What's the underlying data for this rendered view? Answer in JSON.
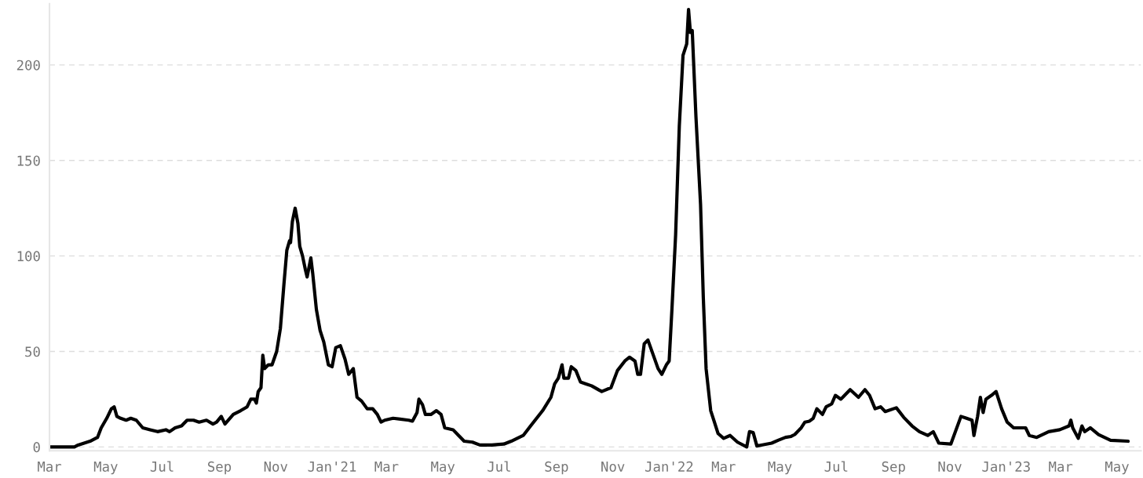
{
  "chart_data": {
    "type": "line",
    "x": [
      "2020-03-01",
      "2020-03-28",
      "2020-04-01",
      "2020-04-14",
      "2020-04-22",
      "2020-04-26",
      "2020-05-02",
      "2020-05-07",
      "2020-05-10",
      "2020-05-13",
      "2020-05-17",
      "2020-05-23",
      "2020-05-28",
      "2020-06-03",
      "2020-06-10",
      "2020-06-18",
      "2020-06-26",
      "2020-07-05",
      "2020-07-09",
      "2020-07-15",
      "2020-07-22",
      "2020-07-28",
      "2020-08-04",
      "2020-08-10",
      "2020-08-18",
      "2020-08-25",
      "2020-08-29",
      "2020-09-03",
      "2020-09-07",
      "2020-09-16",
      "2020-09-24",
      "2020-10-01",
      "2020-10-05",
      "2020-10-09",
      "2020-10-11",
      "2020-10-13",
      "2020-10-16",
      "2020-10-18",
      "2020-10-20",
      "2020-10-24",
      "2020-10-28",
      "2020-11-02",
      "2020-11-06",
      "2020-11-10",
      "2020-11-13",
      "2020-11-16",
      "2020-11-17",
      "2020-11-19",
      "2020-11-22",
      "2020-11-25",
      "2020-11-27",
      "2020-11-30",
      "2020-12-03",
      "2020-12-05",
      "2020-12-09",
      "2020-12-11",
      "2020-12-15",
      "2020-12-19",
      "2020-12-23",
      "2020-12-28",
      "2021-01-01",
      "2021-01-05",
      "2021-01-10",
      "2021-01-15",
      "2021-01-19",
      "2021-01-24",
      "2021-01-28",
      "2021-02-02",
      "2021-02-08",
      "2021-02-14",
      "2021-02-19",
      "2021-02-23",
      "2021-02-27",
      "2021-03-08",
      "2021-03-25",
      "2021-03-29",
      "2021-04-03",
      "2021-04-05",
      "2021-04-09",
      "2021-04-12",
      "2021-04-18",
      "2021-04-24",
      "2021-04-29",
      "2021-05-03",
      "2021-05-12",
      "2021-05-18",
      "2021-05-24",
      "2021-06-02",
      "2021-06-10",
      "2021-06-23",
      "2021-07-06",
      "2021-07-14",
      "2021-07-27",
      "2021-08-04",
      "2021-08-17",
      "2021-08-26",
      "2021-08-30",
      "2021-09-03",
      "2021-09-07",
      "2021-09-09",
      "2021-09-14",
      "2021-09-17",
      "2021-09-22",
      "2021-09-27",
      "2021-10-03",
      "2021-10-09",
      "2021-10-20",
      "2021-10-30",
      "2021-11-06",
      "2021-11-14",
      "2021-11-19",
      "2021-11-25",
      "2021-11-28",
      "2021-12-01",
      "2021-12-05",
      "2021-12-09",
      "2021-12-20",
      "2021-12-24",
      "2021-12-29",
      "2022-01-01",
      "2022-01-04",
      "2022-01-08",
      "2022-01-12",
      "2022-01-16",
      "2022-01-20",
      "2022-01-22",
      "2022-01-24",
      "2022-01-26",
      "2022-01-30",
      "2022-02-04",
      "2022-02-07",
      "2022-02-10",
      "2022-02-15",
      "2022-02-19",
      "2022-02-23",
      "2022-03-01",
      "2022-03-08",
      "2022-03-16",
      "2022-03-26",
      "2022-03-29",
      "2022-04-02",
      "2022-04-06",
      "2022-04-11",
      "2022-04-22",
      "2022-04-29",
      "2022-05-07",
      "2022-05-13",
      "2022-05-17",
      "2022-05-24",
      "2022-05-28",
      "2022-06-02",
      "2022-06-06",
      "2022-06-10",
      "2022-06-16",
      "2022-06-20",
      "2022-06-26",
      "2022-06-30",
      "2022-07-06",
      "2022-07-10",
      "2022-07-16",
      "2022-07-25",
      "2022-08-01",
      "2022-08-06",
      "2022-08-12",
      "2022-08-18",
      "2022-08-23",
      "2022-09-04",
      "2022-09-12",
      "2022-09-21",
      "2022-09-29",
      "2022-10-08",
      "2022-10-14",
      "2022-10-20",
      "2022-11-02",
      "2022-11-13",
      "2022-11-19",
      "2022-11-25",
      "2022-11-27",
      "2022-12-01",
      "2022-12-04",
      "2022-12-07",
      "2022-12-10",
      "2022-12-16",
      "2022-12-21",
      "2022-12-27",
      "2023-01-02",
      "2023-01-09",
      "2023-01-22",
      "2023-01-26",
      "2023-02-03",
      "2023-02-16",
      "2023-02-28",
      "2023-03-10",
      "2023-03-12",
      "2023-03-14",
      "2023-03-20",
      "2023-03-24",
      "2023-03-27",
      "2023-04-02",
      "2023-04-11",
      "2023-04-24",
      "2023-05-13"
    ],
    "series": [
      {
        "color": "#000000",
        "values": [
          0,
          0,
          1,
          3,
          5,
          10,
          15,
          20,
          21,
          16,
          15,
          14,
          15,
          14,
          10,
          9,
          8,
          9,
          8,
          10,
          11,
          14,
          14,
          13,
          14,
          12,
          13,
          16,
          12,
          17,
          19,
          21,
          25,
          25,
          23,
          29,
          31,
          48,
          41,
          43,
          43,
          50,
          62,
          86,
          103,
          108,
          107,
          118,
          125,
          117,
          105,
          100,
          93,
          89,
          99,
          91,
          72,
          61,
          55,
          43,
          42,
          52,
          53,
          46,
          38,
          41,
          26,
          24,
          20,
          20,
          17,
          13,
          14,
          15,
          14,
          13.5,
          18,
          25,
          22,
          17,
          17,
          19,
          17,
          10,
          9,
          6,
          3,
          2.5,
          1,
          1,
          1.5,
          3,
          6,
          11,
          19,
          26,
          33,
          36,
          43,
          36,
          36,
          42,
          40,
          34,
          33,
          32,
          29,
          31,
          40,
          45,
          47,
          45,
          38,
          38,
          54,
          56,
          41,
          38,
          43,
          45,
          72,
          111,
          168,
          205,
          211,
          229,
          217,
          218,
          173,
          127,
          78,
          41,
          19,
          13,
          7,
          4.5,
          6,
          2.5,
          0,
          8,
          7.5,
          0.5,
          1,
          2,
          3.5,
          5,
          5.5,
          6.5,
          10,
          13,
          13.5,
          15,
          20,
          17,
          21,
          22.5,
          27,
          25,
          27,
          30,
          26,
          30,
          27,
          20,
          21,
          18.5,
          20.5,
          15.5,
          11,
          8,
          6,
          8,
          2,
          1.5,
          16,
          15,
          14,
          6,
          16,
          26,
          18,
          25,
          27,
          29,
          20,
          13,
          10,
          10,
          6,
          5,
          8,
          9,
          11,
          14,
          10,
          4.5,
          11,
          8,
          10,
          6.5,
          3.5,
          3
        ]
      }
    ],
    "xlim": [
      "2020-03-01",
      "2023-05-27"
    ],
    "xticks": [
      {
        "value": "2020-03-01",
        "label": "Mar"
      },
      {
        "value": "2020-05-01",
        "label": "May"
      },
      {
        "value": "2020-07-01",
        "label": "Jul"
      },
      {
        "value": "2020-09-01",
        "label": "Sep"
      },
      {
        "value": "2020-11-01",
        "label": "Nov"
      },
      {
        "value": "2021-01-01",
        "label": "Jan'21"
      },
      {
        "value": "2021-03-01",
        "label": "Mar"
      },
      {
        "value": "2021-05-01",
        "label": "May"
      },
      {
        "value": "2021-07-01",
        "label": "Jul"
      },
      {
        "value": "2021-09-01",
        "label": "Sep"
      },
      {
        "value": "2021-11-01",
        "label": "Nov"
      },
      {
        "value": "2022-01-01",
        "label": "Jan'22"
      },
      {
        "value": "2022-03-01",
        "label": "Mar"
      },
      {
        "value": "2022-05-01",
        "label": "May"
      },
      {
        "value": "2022-07-01",
        "label": "Jul"
      },
      {
        "value": "2022-09-01",
        "label": "Sep"
      },
      {
        "value": "2022-11-01",
        "label": "Nov"
      },
      {
        "value": "2023-01-01",
        "label": "Jan'23"
      },
      {
        "value": "2023-03-01",
        "label": "Mar"
      },
      {
        "value": "2023-05-01",
        "label": "May"
      }
    ],
    "ylim": [
      -2,
      232
    ],
    "yticks": [
      0,
      50,
      100,
      150,
      200
    ],
    "grid": "y",
    "line_style": "solid",
    "marker": "none"
  }
}
